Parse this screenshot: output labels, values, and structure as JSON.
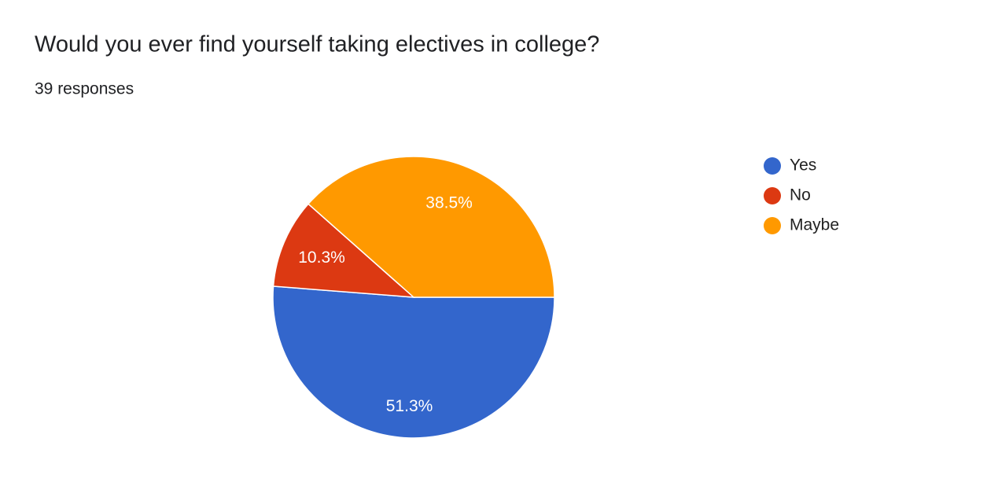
{
  "chart_data": {
    "type": "pie",
    "title": "Would you ever find yourself taking electives in college?",
    "subtitle": "39 responses",
    "categories": [
      "Yes",
      "No",
      "Maybe"
    ],
    "values": [
      51.3,
      10.3,
      38.5
    ],
    "value_labels": [
      "51.3%",
      "10.3%",
      "38.5%"
    ],
    "colors": [
      "#3366cc",
      "#dc3912",
      "#ff9900"
    ],
    "legend": "right"
  }
}
